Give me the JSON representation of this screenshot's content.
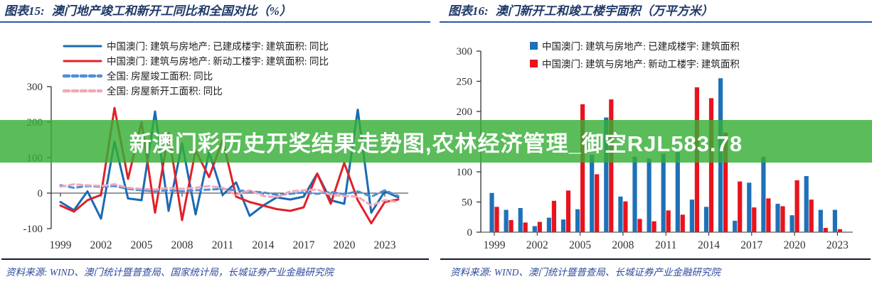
{
  "banner": {
    "text": "新澳门彩历史开奖结果走势图,农林经济管理_御空RJL583.78",
    "bg_color": "rgba(54,174,54,0.82)",
    "text_color": "#FFFFFF"
  },
  "styles": {
    "title_color": "#1F3968",
    "title_underline_color": "#2E58A6",
    "source_line_color": "#151B2E",
    "source_text_color": "#2D4B9B",
    "axis_color": "#333333"
  },
  "charts": [
    {
      "title_prefix": "图表15:",
      "title": "澳门地产竣工和新开工同比和全国对比（%）",
      "source": "资料来源: WIND、澳门统计暨普查局、国家统计局，长城证券产业金融研究院",
      "chart_data": {
        "type": "line",
        "x": [
          1999,
          2000,
          2001,
          2002,
          2003,
          2004,
          2005,
          2006,
          2007,
          2008,
          2009,
          2010,
          2011,
          2012,
          2013,
          2014,
          2015,
          2016,
          2017,
          2018,
          2019,
          2020,
          2021,
          2022,
          2023,
          2024
        ],
        "ylim": [
          -100,
          300
        ],
        "y_ticks": [
          300,
          200,
          100,
          0,
          -100
        ],
        "x_ticks": [
          1999,
          2002,
          2005,
          2008,
          2011,
          2014,
          2017,
          2020,
          2023
        ],
        "grid": false,
        "legend_position": "top-left",
        "series": [
          {
            "name": "中国澳门: 建筑与房地产: 已建成楼宇: 建筑面积: 同比",
            "color": "#1B6AB3",
            "line_style": "solid",
            "values": [
              -25,
              -48,
              5,
              -72,
              145,
              -15,
              -20,
              230,
              -50,
              140,
              -60,
              115,
              -5,
              30,
              -64,
              -35,
              -12,
              -18,
              -10,
              55,
              -20,
              -30,
              235,
              -55,
              5,
              -12
            ]
          },
          {
            "name": "中国澳门: 建筑与房地产: 新动工楼宇: 建筑面积: 同比",
            "color": "#E02128",
            "line_style": "solid",
            "values": [
              -35,
              -52,
              -20,
              -5,
              240,
              40,
              200,
              -55,
              170,
              -76,
              120,
              45,
              150,
              -10,
              -25,
              -35,
              -45,
              -50,
              -40,
              55,
              -30,
              85,
              -20,
              -85,
              -25,
              -18
            ]
          },
          {
            "name": "全国: 房屋竣工面积: 同比",
            "color": "#4D8FD6",
            "line_style": "dashed",
            "values": [
              22,
              15,
              20,
              18,
              20,
              12,
              8,
              5,
              8,
              5,
              8,
              10,
              12,
              8,
              5,
              2,
              -5,
              -2,
              2,
              -2,
              3,
              -3,
              5,
              -10,
              8,
              -8
            ]
          },
          {
            "name": "全国: 房屋新开工面积: 同比",
            "color": "#F2A8B8",
            "line_style": "dashed",
            "values": [
              18,
              25,
              22,
              20,
              25,
              15,
              12,
              10,
              15,
              12,
              15,
              20,
              15,
              -5,
              8,
              -8,
              -12,
              5,
              8,
              10,
              -5,
              -8,
              -10,
              -35,
              -20,
              -25
            ]
          }
        ]
      }
    },
    {
      "title_prefix": "图表16:",
      "title": "澳门新开工和竣工楼宇面积（万平方米）",
      "source": "资料来源: WIND、澳门统计暨普查局、长城证券产业金融研究院",
      "chart_data": {
        "type": "bar",
        "categories": [
          1999,
          2000,
          2001,
          2002,
          2003,
          2004,
          2005,
          2006,
          2007,
          2008,
          2009,
          2010,
          2011,
          2012,
          2013,
          2014,
          2015,
          2016,
          2017,
          2018,
          2019,
          2020,
          2021,
          2022,
          2023
        ],
        "ylim": [
          0,
          300
        ],
        "y_ticks": [
          300,
          250,
          200,
          150,
          100,
          50,
          0
        ],
        "x_ticks": [
          1999,
          2002,
          2005,
          2008,
          2011,
          2014,
          2017,
          2020,
          2023
        ],
        "grid": false,
        "legend_position": "top",
        "series": [
          {
            "name": "中国澳门: 建筑与房地产: 已建成楼宇: 建筑面积",
            "color": "#1E71B8",
            "values": [
              65,
              37,
              40,
              10,
              24,
              21,
              38,
              128,
              190,
              59,
              125,
              122,
              130,
              133,
              54,
              42,
              255,
              19,
              82,
              125,
              47,
              28,
              93,
              37,
              37
            ]
          },
          {
            "name": "中国澳门: 建筑与房地产: 新动工楼宇: 建筑面积",
            "color": "#E8131D",
            "values": [
              42,
              20,
              16,
              17,
              52,
              69,
              212,
              96,
              220,
              51,
              22,
              18,
              36,
              29,
              240,
              222,
              165,
              84,
              41,
              56,
              43,
              86,
              54,
              7,
              5
            ]
          }
        ]
      }
    }
  ]
}
